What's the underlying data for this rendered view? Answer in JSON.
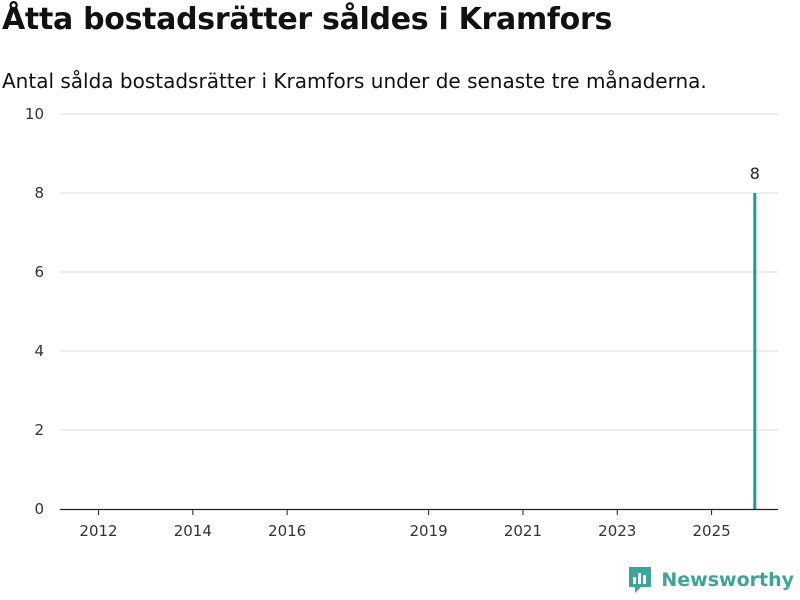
{
  "title": "Åtta bostadsrätter såldes i Kramfors",
  "subtitle": "Antal sålda bostadsrätter i Kramfors under de senaste tre månaderna.",
  "brand": {
    "name": "Newsworthy",
    "icon": "newsworthy-logo-icon"
  },
  "colors": {
    "bar": "#6d6e72",
    "highlight": "#1f9e93",
    "grid": "#dddddd",
    "brand": "#3aa59a"
  },
  "chart_data": {
    "type": "bar",
    "title": "Åtta bostadsrätter såldes i Kramfors",
    "subtitle": "Antal sålda bostadsrätter i Kramfors under de senaste tre månaderna.",
    "xlabel": "",
    "ylabel": "",
    "ylim": [
      0,
      10
    ],
    "y_ticks": [
      0,
      2,
      4,
      6,
      8,
      10
    ],
    "x_ticks": [
      "2012",
      "2014",
      "2016",
      "2019",
      "2021",
      "2023",
      "2025"
    ],
    "grid": true,
    "legend": "none",
    "start_month": "2011-01",
    "values": [
      0,
      0,
      0,
      0,
      0,
      0,
      0,
      0,
      0,
      0,
      0,
      0,
      0,
      0,
      0,
      0,
      0,
      0,
      0,
      0,
      0,
      0,
      0,
      0,
      0,
      0,
      0,
      0,
      0,
      0,
      0,
      0,
      0,
      0,
      0,
      0,
      0,
      0,
      0,
      0,
      0,
      0,
      0,
      0,
      0,
      0,
      0,
      0,
      0,
      0,
      0,
      0,
      0,
      0,
      0,
      0,
      0,
      0,
      0,
      0,
      0,
      0,
      0,
      0,
      0,
      0,
      0,
      0,
      0,
      0,
      0,
      0,
      0,
      0,
      0,
      0,
      0,
      0,
      0,
      0,
      0,
      0,
      0,
      0,
      0,
      0,
      0,
      0,
      0,
      0,
      0,
      0,
      0,
      0,
      0,
      0,
      0,
      0,
      0,
      0,
      0,
      0,
      0,
      0,
      0,
      0,
      0,
      0,
      0,
      0,
      0,
      0,
      0,
      0,
      0,
      0,
      0,
      0,
      0,
      0,
      0,
      0,
      0,
      0,
      0,
      0,
      0,
      0,
      0,
      0,
      0,
      0,
      0,
      0,
      0,
      0,
      0,
      0,
      0,
      0,
      0,
      0,
      0,
      0,
      0,
      0,
      0,
      0,
      0,
      0,
      0,
      0,
      0,
      0,
      0,
      0,
      0,
      0,
      0,
      0,
      0,
      0,
      0,
      0,
      0,
      0,
      0,
      0,
      0,
      0,
      0,
      0,
      0,
      0,
      0,
      0,
      0,
      0,
      0,
      8
    ],
    "highlight_index": 179,
    "highlight_label": "8"
  }
}
